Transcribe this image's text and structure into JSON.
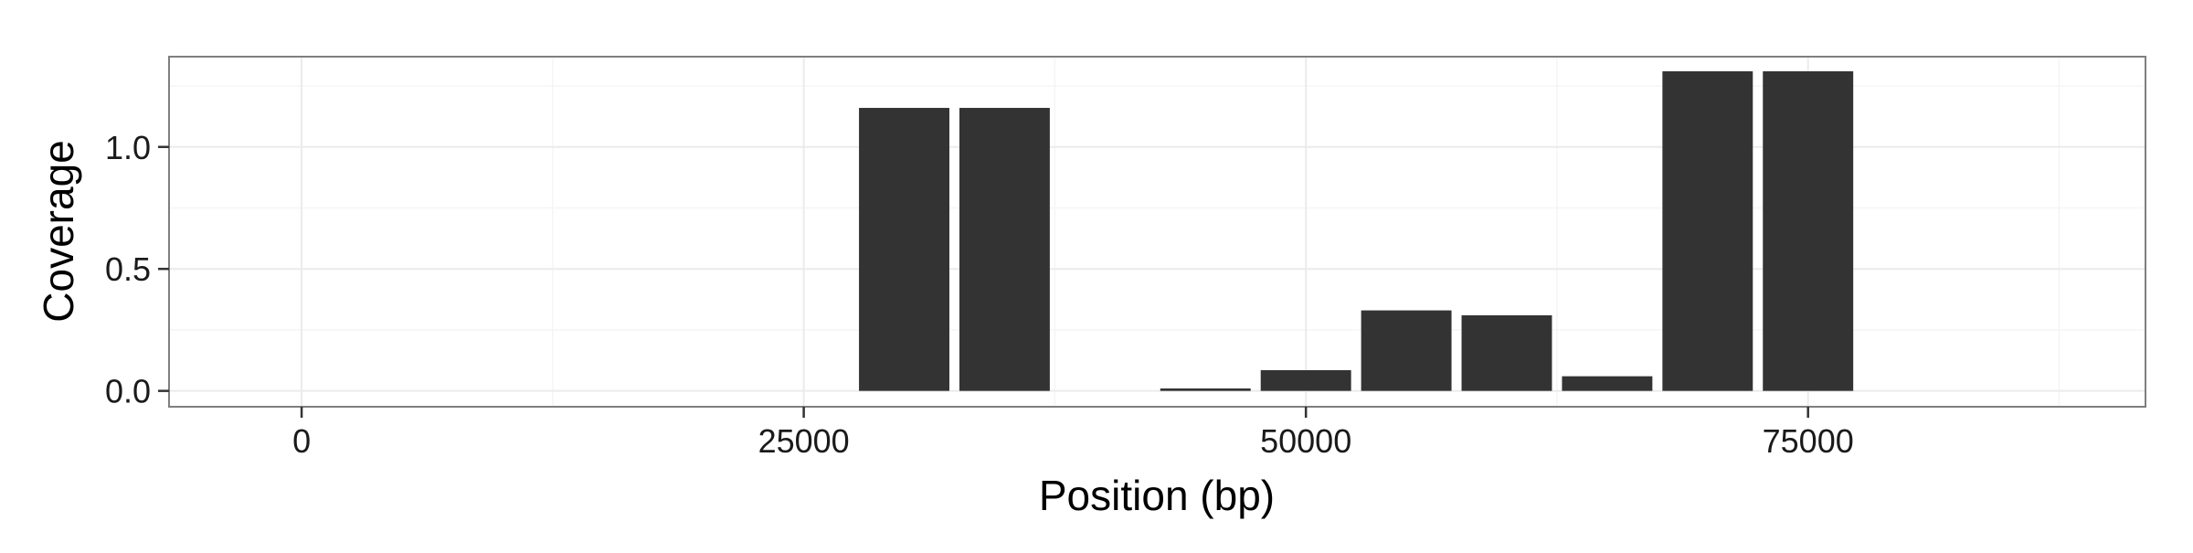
{
  "chart_data": {
    "type": "bar",
    "title": "",
    "xlabel": "Position (bp)",
    "ylabel": "Coverage",
    "xlim": [
      -6600,
      91800
    ],
    "ylim": [
      -0.065,
      1.37
    ],
    "bar_width": 4500,
    "x": [
      30000,
      35000,
      45000,
      50000,
      55000,
      60000,
      65000,
      70000,
      75000
    ],
    "values": [
      1.16,
      1.16,
      0.01,
      0.085,
      0.33,
      0.31,
      0.06,
      1.31,
      1.31
    ],
    "x_ticks": [
      0,
      25000,
      50000,
      75000
    ],
    "x_tick_labels": [
      "0",
      "25000",
      "50000",
      "75000"
    ],
    "y_ticks": [
      0.0,
      0.5,
      1.0
    ],
    "y_tick_labels": [
      "0.0",
      "0.5",
      "1.0"
    ],
    "grid": true,
    "colors": {
      "bar": "#333333",
      "panel_background": "#ffffff",
      "grid_major": "#ebebeb",
      "grid_minor": "#f5f5f5",
      "panel_border": "#7f7f7f",
      "axis_tick": "#333333"
    }
  }
}
